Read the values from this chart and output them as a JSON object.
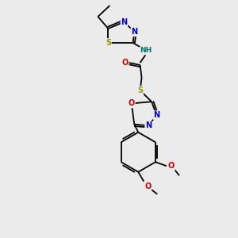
{
  "bg_color": "#ebebeb",
  "bond_color": "#000000",
  "atom_colors": {
    "N": "#0000cc",
    "S": "#999900",
    "O": "#cc0000",
    "NH": "#007070",
    "C": "#000000"
  },
  "font_size": 7.0,
  "fig_size": [
    3.0,
    3.0
  ],
  "dpi": 100
}
